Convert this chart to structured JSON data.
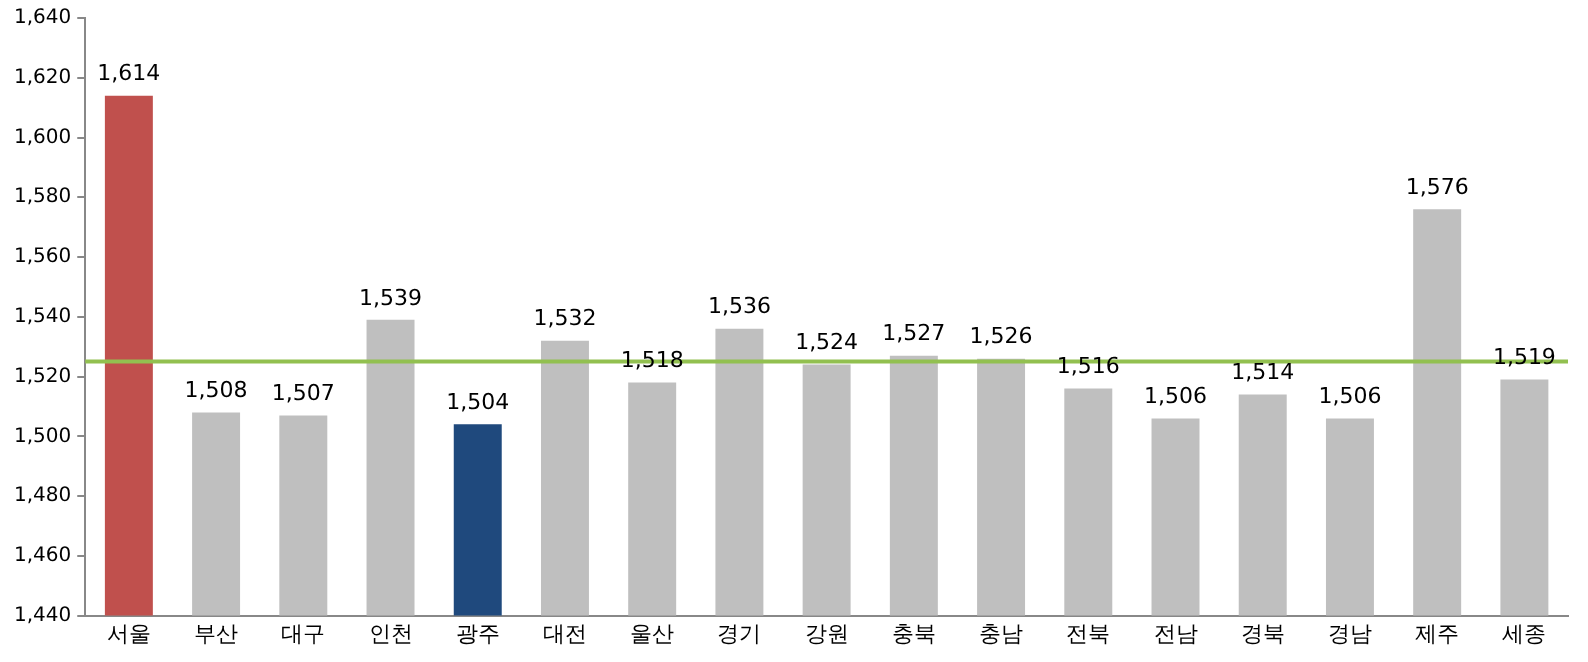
{
  "chart_data": {
    "type": "bar",
    "categories": [
      "서울",
      "부산",
      "대구",
      "인천",
      "광주",
      "대전",
      "울산",
      "경기",
      "강원",
      "충북",
      "충남",
      "전북",
      "전남",
      "경북",
      "경남",
      "제주",
      "세종"
    ],
    "values": [
      1614,
      1508,
      1507,
      1539,
      1504,
      1532,
      1518,
      1536,
      1524,
      1527,
      1526,
      1516,
      1506,
      1514,
      1506,
      1576,
      1519
    ],
    "colors": [
      "#c0504d",
      "#bfbfbf",
      "#bfbfbf",
      "#bfbfbf",
      "#1f497d",
      "#bfbfbf",
      "#bfbfbf",
      "#bfbfbf",
      "#bfbfbf",
      "#bfbfbf",
      "#bfbfbf",
      "#bfbfbf",
      "#bfbfbf",
      "#bfbfbf",
      "#bfbfbf",
      "#bfbfbf",
      "#bfbfbf"
    ],
    "value_labels": [
      "1,614",
      "1,508",
      "1,507",
      "1,539",
      "1,504",
      "1,532",
      "1,518",
      "1,536",
      "1,524",
      "1,527",
      "1,526",
      "1,516",
      "1,506",
      "1,514",
      "1,506",
      "1,576",
      "1,519"
    ],
    "ylim": [
      1440,
      1640
    ],
    "yticks": [
      {
        "value": 1440,
        "label": "1,440"
      },
      {
        "value": 1460,
        "label": "1,460"
      },
      {
        "value": 1480,
        "label": "1,480"
      },
      {
        "value": 1500,
        "label": "1,500"
      },
      {
        "value": 1520,
        "label": "1,520"
      },
      {
        "value": 1540,
        "label": "1,540"
      },
      {
        "value": 1560,
        "label": "1,560"
      },
      {
        "value": 1580,
        "label": "1,580"
      },
      {
        "value": 1600,
        "label": "1,600"
      },
      {
        "value": 1620,
        "label": "1,620"
      },
      {
        "value": 1640,
        "label": "1,640"
      }
    ],
    "ref_lines": [
      {
        "axis": "y",
        "value": 1525,
        "color": "#92c050"
      }
    ],
    "grid": false,
    "legend": false
  }
}
